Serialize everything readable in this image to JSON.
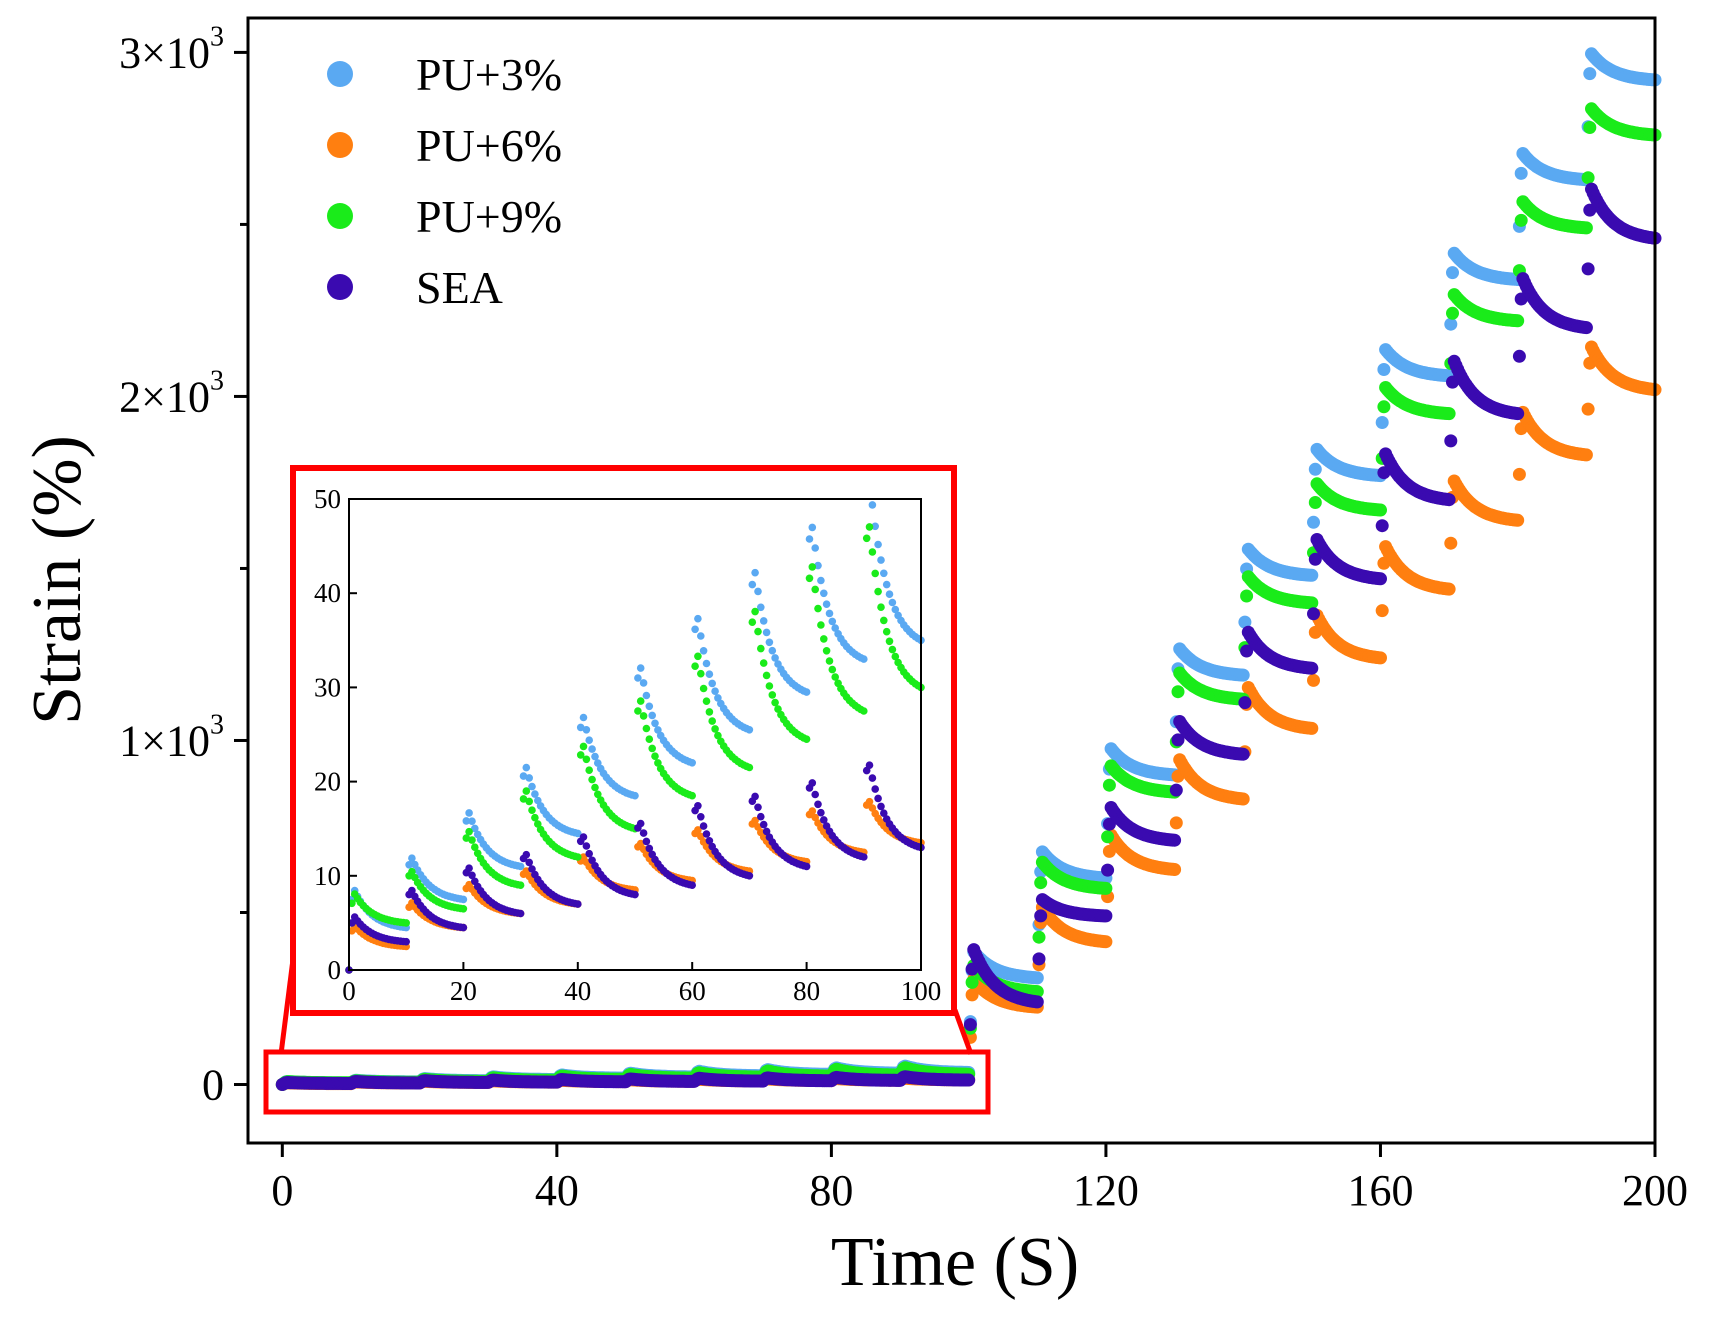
{
  "chart_data": {
    "type": "scatter",
    "xlabel": "Time (S)",
    "ylabel": "Strain (%)",
    "xlim": [
      -5,
      200
    ],
    "ylim": [
      -170,
      3100
    ],
    "x_ticks": [
      {
        "value": 0,
        "label": "0"
      },
      {
        "value": 40,
        "label": "40"
      },
      {
        "value": 80,
        "label": "80"
      },
      {
        "value": 120,
        "label": "120"
      },
      {
        "value": 160,
        "label": "160"
      },
      {
        "value": 200,
        "label": "200"
      }
    ],
    "y_ticks": [
      {
        "value": 0,
        "mant": "0",
        "exp": ""
      },
      {
        "value": 1000,
        "mant": "1×10",
        "exp": "3"
      },
      {
        "value": 2000,
        "mant": "2×10",
        "exp": "3"
      },
      {
        "value": 3000,
        "mant": "3×10",
        "exp": "3"
      }
    ],
    "y_minor_ticks": [
      500,
      1500,
      2500
    ],
    "cycle_period": 10,
    "series": [
      {
        "name": "PU+3%",
        "color": "#5aa9f2",
        "peaks": [
          9,
          12.5,
          17.5,
          22.5,
          28,
          33.5,
          39,
          44,
          49,
          54.5,
          390,
          680,
          980,
          1270,
          1560,
          1850,
          2140,
          2420,
          2710,
          3000
        ],
        "troughs": [
          4.5,
          7.5,
          11,
          14.5,
          18.5,
          22,
          25.5,
          29.5,
          33,
          35,
          310,
          600,
          900,
          1190,
          1480,
          1770,
          2060,
          2340,
          2630,
          2920
        ]
      },
      {
        "name": "PU+6%",
        "color": "#ff7f10",
        "peaks": [
          5,
          7.5,
          9.5,
          11,
          12.5,
          14,
          15.5,
          16.5,
          17.5,
          18.5,
          310,
          520,
          730,
          950,
          1160,
          1370,
          1570,
          1760,
          1960,
          2150
        ],
        "troughs": [
          2.5,
          4.5,
          6,
          7,
          8.5,
          9.5,
          10.5,
          11.5,
          12.5,
          13.5,
          225,
          415,
          625,
          830,
          1035,
          1240,
          1440,
          1640,
          1830,
          2020
        ]
      },
      {
        "name": "PU+9%",
        "color": "#1aeb1a",
        "peaks": [
          8.5,
          11,
          15.5,
          20,
          25,
          30,
          35,
          40,
          45,
          49.5,
          350,
          650,
          930,
          1200,
          1480,
          1750,
          2030,
          2300,
          2570,
          2840
        ],
        "troughs": [
          5,
          6.5,
          9,
          12,
          15,
          18.5,
          21.5,
          24.5,
          27.5,
          30,
          270,
          570,
          850,
          1120,
          1400,
          1670,
          1950,
          2220,
          2490,
          2760
        ]
      },
      {
        "name": "SEA",
        "color": "#3a0ab0",
        "peaks": [
          6,
          9,
          11.5,
          13,
          15,
          16.5,
          18.5,
          19.5,
          21,
          23,
          400,
          540,
          810,
          1060,
          1320,
          1590,
          1840,
          2110,
          2350,
          2610
        ],
        "troughs": [
          3,
          4.5,
          6,
          7,
          8,
          9,
          10,
          11,
          12,
          13,
          240,
          490,
          710,
          960,
          1210,
          1470,
          1700,
          1950,
          2200,
          2460
        ]
      }
    ],
    "inset": {
      "xlim": [
        0,
        100
      ],
      "ylim": [
        0,
        50
      ],
      "x_ticks": [
        "0",
        "20",
        "40",
        "60",
        "80",
        "100"
      ],
      "y_ticks": [
        "0",
        "10",
        "20",
        "30",
        "40",
        "50"
      ]
    }
  }
}
